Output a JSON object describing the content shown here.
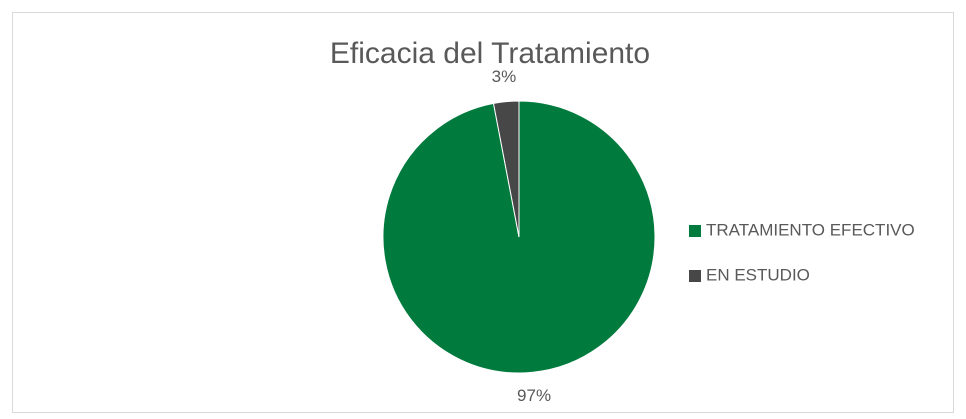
{
  "chart_data": {
    "type": "pie",
    "title": "Eficacia del Tratamiento",
    "categories": [
      "TRATAMIENTO EFECTIVO",
      "EN ESTUDIO"
    ],
    "values": [
      97,
      3
    ],
    "value_labels": [
      "97%",
      "3%"
    ],
    "colors": [
      "#007a3d",
      "#474747"
    ]
  }
}
